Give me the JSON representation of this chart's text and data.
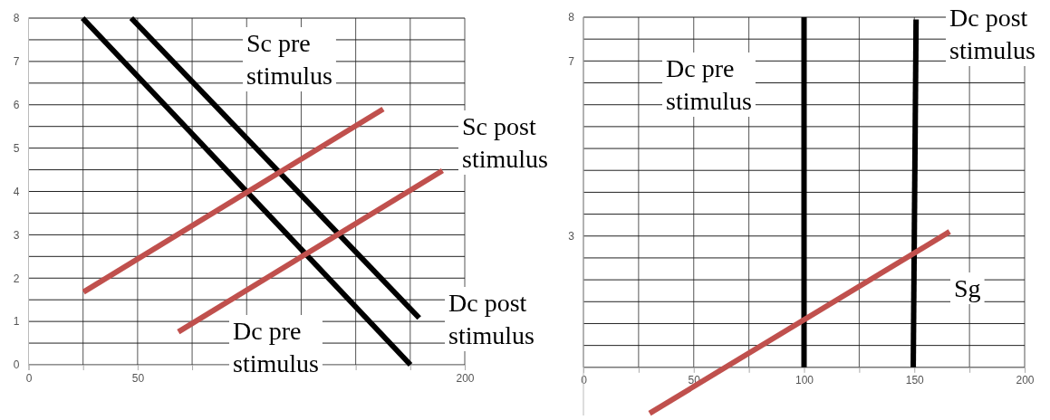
{
  "chart_data": [
    {
      "type": "line",
      "xlim": [
        0,
        200
      ],
      "ylim": [
        0,
        8
      ],
      "grid": true,
      "line_style": "solid",
      "xticks": [
        0,
        {
          "value": 25,
          "label": null
        },
        50,
        {
          "value": 75,
          "label": null
        },
        {
          "value": 100,
          "label": null
        },
        {
          "value": 125,
          "label": null
        },
        {
          "value": 150,
          "label": null
        },
        {
          "value": 175,
          "label": null
        },
        200
      ],
      "yticks": [
        0,
        {
          "value": 0.5,
          "label": null
        },
        1,
        {
          "value": 1.5,
          "label": null
        },
        2,
        {
          "value": 2.5,
          "label": null
        },
        3,
        {
          "value": 3.5,
          "label": null
        },
        4,
        {
          "value": 4.5,
          "label": null
        },
        5,
        {
          "value": 5.5,
          "label": null
        },
        6,
        {
          "value": 6.5,
          "label": null
        },
        7,
        {
          "value": 7.5,
          "label": null
        },
        8
      ],
      "series": [
        {
          "color": "#000000",
          "x": [
            24.8,
            175.1
          ],
          "values": [
            8,
            0
          ]
        },
        {
          "color": "#000000",
          "x": [
            47.1,
            179.1
          ],
          "values": [
            8,
            1.08
          ]
        },
        {
          "color": "#c0504d",
          "x": [
            25.2,
            162.6
          ],
          "values": [
            1.68,
            5.9
          ]
        },
        {
          "color": "#c0504d",
          "x": [
            68.7,
            189.8
          ],
          "values": [
            0.76,
            4.48
          ]
        }
      ],
      "annotations": [
        "Sc pre stimulus",
        "Sc post stimulus",
        "Dc post stimulus",
        "Dc pre stimulus"
      ]
    },
    {
      "type": "line",
      "xlim": [
        0,
        200
      ],
      "ylim": [
        -1.1,
        8
      ],
      "grid": true,
      "line_style": "solid",
      "xticks": [
        0,
        {
          "value": 25,
          "label": null
        },
        50,
        {
          "value": 75,
          "label": null
        },
        100,
        {
          "value": 125,
          "label": null
        },
        150,
        {
          "value": 175,
          "label": null
        },
        200
      ],
      "yticks": [
        {
          "value": 0,
          "label": null
        },
        {
          "value": 0.5,
          "label": null
        },
        {
          "value": 1,
          "label": null
        },
        {
          "value": 1.5,
          "label": null
        },
        {
          "value": 2,
          "label": null
        },
        {
          "value": 2.5,
          "label": null
        },
        3,
        {
          "value": 3.5,
          "label": null
        },
        {
          "value": 4,
          "label": null
        },
        {
          "value": 4.5,
          "label": null
        },
        {
          "value": 5,
          "label": null
        },
        {
          "value": 5.5,
          "label": null
        },
        {
          "value": 6,
          "label": null
        },
        {
          "value": 6.5,
          "label": null
        },
        7,
        {
          "value": 7.5,
          "label": null
        },
        8
      ],
      "series": [
        {
          "color": "#000000",
          "x": [
            100,
            100
          ],
          "values": [
            0,
            8
          ]
        },
        {
          "color": "#000000",
          "x": [
            149.5,
            150.8
          ],
          "values": [
            0,
            7.95
          ]
        },
        {
          "color": "#c0504d",
          "x": [
            30,
            166
          ],
          "values": [
            -1.05,
            3.1
          ]
        }
      ],
      "annotations": [
        "Dc pre stimulus",
        "Dc post stimulus",
        "Sg"
      ]
    }
  ]
}
